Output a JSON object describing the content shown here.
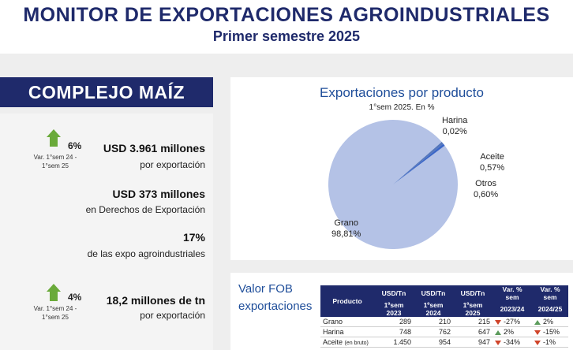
{
  "header": {
    "title": "MONITOR DE EXPORTACIONES AGROINDUSTRIALES",
    "subtitle": "Primer semestre 2025"
  },
  "complejo": "COMPLEJO MAÍZ",
  "kpis": [
    {
      "var_pct": "6%",
      "var_label_1": "Var. 1°sem 24 -",
      "var_label_2": "1°sem 25",
      "value": "USD 3.961 millones",
      "desc": "por exportación",
      "trend": "up"
    },
    {
      "value": "USD 373 millones",
      "desc": "en Derechos de Exportación"
    },
    {
      "value": "17%",
      "desc": "de las expo agroindustriales"
    },
    {
      "var_pct": "4%",
      "var_label_1": "Var. 1°sem 24 -",
      "var_label_2": "1°sem 25",
      "value": "18,2 millones de tn",
      "desc": "por exportación",
      "trend": "up"
    }
  ],
  "pie": {
    "title": "Exportaciones por producto",
    "subtitle": "1°sem 2025. En %",
    "labels": [
      {
        "name": "Harina",
        "value": "0,02%"
      },
      {
        "name": "Aceite",
        "value": "0,57%"
      },
      {
        "name": "Otros",
        "value": "0,60%"
      },
      {
        "name": "Grano",
        "value": "98,81%"
      }
    ]
  },
  "chart_data": {
    "type": "pie",
    "title": "Exportaciones por producto",
    "subtitle": "1°sem 2025. En %",
    "categories": [
      "Grano",
      "Otros",
      "Aceite",
      "Harina"
    ],
    "values": [
      98.81,
      0.6,
      0.57,
      0.02
    ],
    "colors": [
      "#b4c2e6",
      "#5577bb",
      "#3a66c8",
      "#2f4f99"
    ]
  },
  "fob": {
    "label_1": "Valor FOB",
    "label_2": "exportaciones",
    "headers_top": [
      "Producto",
      "USD/Tn",
      "USD/Tn",
      "USD/Tn",
      "Var. % sem",
      "Var. % sem"
    ],
    "headers_bottom": [
      "",
      "1ºsem 2023",
      "1ºsem 2024",
      "1ºsem 2025",
      "2023/24",
      "2024/25"
    ],
    "rows": [
      {
        "producto": "Grano",
        "u23": "289",
        "u24": "210",
        "u25": "215",
        "v1": "-27%",
        "v1dir": "down",
        "v2": "2%",
        "v2dir": "up"
      },
      {
        "producto": "Harina",
        "u23": "748",
        "u24": "762",
        "u25": "647",
        "v1": "2%",
        "v1dir": "up",
        "v2": "-15%",
        "v2dir": "down"
      },
      {
        "producto": "Aceite",
        "producto_note": "(en bruto)",
        "u23": "1.450",
        "u24": "954",
        "u25": "947",
        "v1": "-34%",
        "v1dir": "down",
        "v2": "-1%",
        "v2dir": "down"
      }
    ]
  }
}
